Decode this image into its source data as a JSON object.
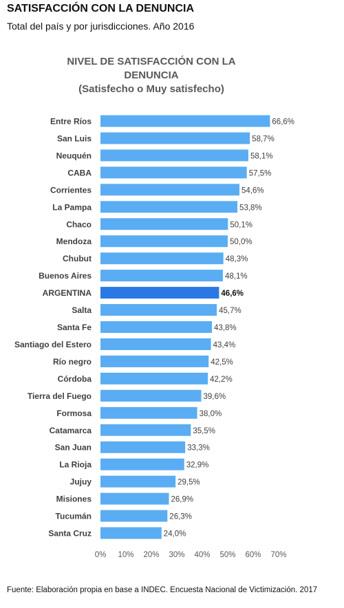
{
  "header": {
    "title": "SATISFACCIÓN CON LA DENUNCIA",
    "subtitle": "Total del país y por jurisdicciones. Año 2016"
  },
  "footer": {
    "source": "Fuente: Elaboración propia en base a INDEC. Encuesta Nacional de Victimización. 2017"
  },
  "colors": {
    "bar": "#5aadf2",
    "bar_highlight": "#2a78e4",
    "axis_text": "#595959",
    "label_text": "#404040"
  },
  "chart_data": {
    "type": "bar",
    "orientation": "horizontal",
    "title_lines": [
      "NIVEL DE SATISFACCIÓN CON LA",
      "DENUNCIA",
      "(Satisfecho o Muy satisfecho)"
    ],
    "categories": [
      "Entre Ríos",
      "San Luis",
      "Neuquén",
      "CABA",
      "Corrientes",
      "La Pampa",
      "Chaco",
      "Mendoza",
      "Chubut",
      "Buenos Aires",
      "ARGENTINA",
      "Salta",
      "Santa Fe",
      "Santiago del Estero",
      "Río negro",
      "Córdoba",
      "Tierra del Fuego",
      "Formosa",
      "Catamarca",
      "San Juan",
      "La Rioja",
      "Jujuy",
      "Misiones",
      "Tucumán",
      "Santa Cruz"
    ],
    "values": [
      66.6,
      58.7,
      58.1,
      57.5,
      54.6,
      53.8,
      50.1,
      50.0,
      48.3,
      48.1,
      46.6,
      45.7,
      43.8,
      43.4,
      42.5,
      42.2,
      39.6,
      38.0,
      35.5,
      33.3,
      32.9,
      29.5,
      26.9,
      26.3,
      24.0
    ],
    "value_labels": [
      "66,6%",
      "58,7%",
      "58,1%",
      "57,5%",
      "54,6%",
      "53,8%",
      "50,1%",
      "50,0%",
      "48,3%",
      "48,1%",
      "46,6%",
      "45,7%",
      "43,8%",
      "43,4%",
      "42,5%",
      "42,2%",
      "39,6%",
      "38,0%",
      "35,5%",
      "33,3%",
      "32,9%",
      "29,5%",
      "26,9%",
      "26,3%",
      "24,0%"
    ],
    "highlight": "ARGENTINA",
    "xlim": [
      0,
      70
    ],
    "xticks": [
      0,
      10,
      20,
      30,
      40,
      50,
      60,
      70
    ],
    "xtick_labels": [
      "0%",
      "10%",
      "20%",
      "30%",
      "40%",
      "50%",
      "60%",
      "70%"
    ],
    "grid": false,
    "legend": "none"
  }
}
